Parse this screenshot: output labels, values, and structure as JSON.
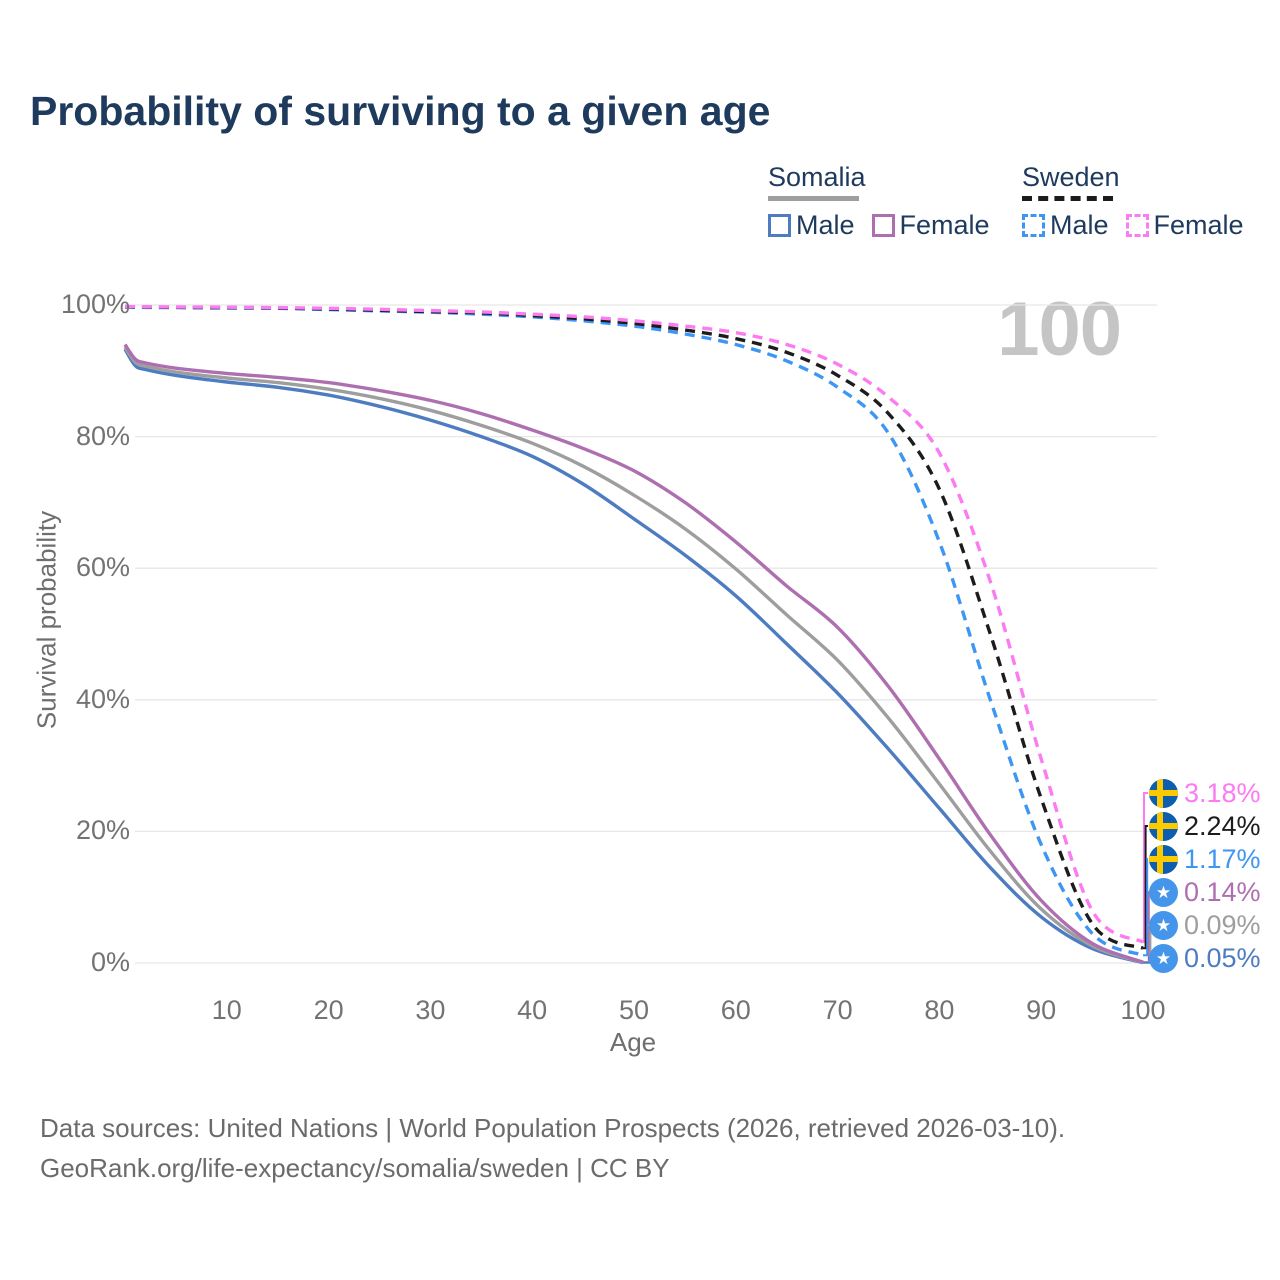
{
  "title": "Probability of surviving to a given age",
  "legend": {
    "groups": [
      {
        "label": "Somalia",
        "underline_style": "solid",
        "underline_color": "#9e9e9e",
        "items": [
          {
            "label": "Male",
            "color": "#4d7cc1",
            "style": "solid"
          },
          {
            "label": "Female",
            "color": "#ae6fb0",
            "style": "solid"
          }
        ]
      },
      {
        "label": "Sweden",
        "underline_style": "dashed",
        "underline_color": "#1c1c1c",
        "items": [
          {
            "label": "Male",
            "color": "#3e96f4",
            "style": "dashed"
          },
          {
            "label": "Female",
            "color": "#fc7af2",
            "style": "dashed"
          }
        ]
      }
    ]
  },
  "chart_data": {
    "type": "line",
    "title": "Probability of surviving to a given age",
    "xlabel": "Age",
    "ylabel": "Survival probability",
    "xlim": [
      0,
      100
    ],
    "ylim": [
      0,
      100
    ],
    "x_ticks": [
      10,
      20,
      30,
      40,
      50,
      60,
      70,
      80,
      90,
      100
    ],
    "y_ticks": [
      0,
      20,
      40,
      60,
      80,
      100
    ],
    "y_tick_suffix": "%",
    "grid": "horizontal",
    "age_counter": "100",
    "x": [
      0,
      1,
      2,
      5,
      10,
      15,
      20,
      25,
      30,
      35,
      40,
      45,
      50,
      55,
      60,
      65,
      70,
      75,
      80,
      85,
      90,
      95,
      100
    ],
    "series": [
      {
        "name": "Somalia Male",
        "country": "Somalia",
        "sex": "Male",
        "style": "solid",
        "color": "#4d7cc1",
        "values": [
          93.3,
          90.8,
          90.2,
          89.3,
          88.3,
          87.5,
          86.3,
          84.6,
          82.5,
          80.0,
          77.0,
          72.8,
          67.5,
          62.0,
          55.8,
          48.5,
          41.0,
          32.5,
          23.5,
          14.5,
          7.0,
          2.2,
          0.05
        ],
        "end_value": 0.05
      },
      {
        "name": "Somalia Both sexes",
        "country": "Somalia",
        "sex": "Both",
        "style": "solid",
        "color": "#9e9e9e",
        "values": [
          93.6,
          91.3,
          90.7,
          89.8,
          88.9,
          88.2,
          87.2,
          85.8,
          84.0,
          81.7,
          79.0,
          75.5,
          71.1,
          66.0,
          59.9,
          52.9,
          46.0,
          37.2,
          27.2,
          17.0,
          8.2,
          2.6,
          0.09
        ],
        "end_value": 0.09
      },
      {
        "name": "Somalia Female",
        "country": "Somalia",
        "sex": "Female",
        "style": "solid",
        "color": "#ae6fb0",
        "values": [
          94.0,
          91.8,
          91.2,
          90.4,
          89.6,
          89.0,
          88.2,
          87.0,
          85.5,
          83.5,
          81.0,
          78.2,
          74.8,
          70.0,
          64.0,
          57.3,
          51.0,
          42.0,
          31.0,
          19.5,
          9.5,
          3.0,
          0.14
        ],
        "end_value": 0.14
      },
      {
        "name": "Sweden Male",
        "country": "Sweden",
        "sex": "Male",
        "style": "dashed",
        "color": "#3e96f4",
        "values": [
          99.7,
          99.65,
          99.63,
          99.6,
          99.55,
          99.5,
          99.3,
          99.1,
          98.9,
          98.6,
          98.2,
          97.6,
          96.8,
          95.6,
          94.0,
          91.5,
          87.5,
          80.5,
          64.0,
          40.0,
          18.0,
          4.5,
          1.17
        ],
        "end_value": 1.17
      },
      {
        "name": "Sweden Both sexes",
        "country": "Sweden",
        "sex": "Both",
        "style": "dashed",
        "color": "#1c1c1c",
        "values": [
          99.75,
          99.7,
          99.68,
          99.65,
          99.6,
          99.55,
          99.4,
          99.2,
          99.0,
          98.8,
          98.4,
          97.9,
          97.2,
          96.2,
          94.9,
          92.8,
          89.3,
          83.5,
          72.0,
          50.0,
          25.0,
          6.0,
          2.24
        ],
        "end_value": 2.24
      },
      {
        "name": "Sweden Female",
        "country": "Sweden",
        "sex": "Female",
        "style": "dashed",
        "color": "#fc7af2",
        "values": [
          99.8,
          99.75,
          99.73,
          99.7,
          99.67,
          99.6,
          99.5,
          99.35,
          99.15,
          98.95,
          98.6,
          98.2,
          97.6,
          96.8,
          95.8,
          94.0,
          91.0,
          86.0,
          77.5,
          58.0,
          31.0,
          8.0,
          3.18
        ],
        "end_value": 3.18
      }
    ],
    "end_labels": [
      {
        "series": "Sweden Female",
        "flag": "sweden",
        "text": "3.18%",
        "color": "#fc7af2"
      },
      {
        "series": "Sweden Both sexes",
        "flag": "sweden",
        "text": "2.24%",
        "color": "#1c1c1c"
      },
      {
        "series": "Sweden Male",
        "flag": "sweden",
        "text": "1.17%",
        "color": "#3e96f4"
      },
      {
        "series": "Somalia Female",
        "flag": "somalia",
        "text": "0.14%",
        "color": "#ae6fb0"
      },
      {
        "series": "Somalia Both sexes",
        "flag": "somalia",
        "text": "0.09%",
        "color": "#9e9e9e"
      },
      {
        "series": "Somalia Male",
        "flag": "somalia",
        "text": "0.05%",
        "color": "#4d7cc1"
      }
    ]
  },
  "colors": {
    "title": "#1e3a5c",
    "axis_text": "#737373",
    "axis_title": "#6e6e6e",
    "grid": "#e7e7e7",
    "watermark": "#c5c5c5",
    "background": "#ffffff",
    "flag_sweden_blue": "#0d5eaf",
    "flag_sweden_yellow": "#fdca00",
    "flag_somalia_blue": "#4596ea",
    "star_icon": "★"
  },
  "footer": {
    "line1": "Data sources: United Nations | World Population Prospects (2026, retrieved 2026-03-10).",
    "line2": "GeoRank.org/life-expectancy/somalia/sweden | CC BY"
  }
}
